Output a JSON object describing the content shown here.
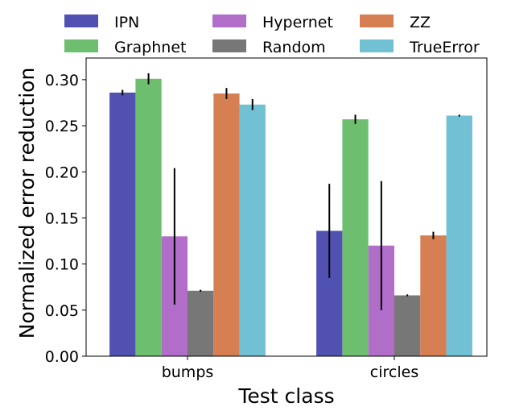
{
  "chart_data": {
    "type": "bar",
    "title": "",
    "xlabel": "Test class",
    "ylabel": "Normalized error reduction",
    "categories": [
      "bumps",
      "circles"
    ],
    "ylim": [
      0,
      0.3235
    ],
    "yticks": [
      0.0,
      0.05,
      0.1,
      0.15,
      0.2,
      0.25,
      0.3
    ],
    "ytick_labels": [
      "0.00",
      "0.05",
      "0.10",
      "0.15",
      "0.20",
      "0.25",
      "0.30"
    ],
    "grid": false,
    "legend_position": "top, above plot, 3 columns",
    "series": [
      {
        "name": "IPN",
        "color": "#5051b0",
        "values": [
          0.286,
          0.136
        ],
        "errors": [
          0.003,
          0.051
        ]
      },
      {
        "name": "Graphnet",
        "color": "#6dbe6f",
        "values": [
          0.301,
          0.257
        ],
        "errors": [
          0.006,
          0.005
        ]
      },
      {
        "name": "Hypernet",
        "color": "#b06ec8",
        "values": [
          0.13,
          0.12
        ],
        "errors": [
          0.074,
          0.07
        ]
      },
      {
        "name": "Random",
        "color": "#777777",
        "values": [
          0.071,
          0.066
        ],
        "errors": [
          0.001,
          0.001
        ]
      },
      {
        "name": "ZZ",
        "color": "#d67f53",
        "values": [
          0.285,
          0.131
        ],
        "errors": [
          0.006,
          0.004
        ]
      },
      {
        "name": "TrueError",
        "color": "#72c0d3",
        "values": [
          0.273,
          0.261
        ],
        "errors": [
          0.006,
          0.001
        ]
      }
    ]
  }
}
